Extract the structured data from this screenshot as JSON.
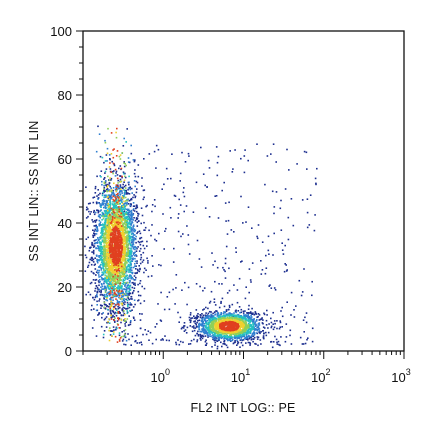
{
  "chart_data": {
    "type": "scatter",
    "subtype": "flow-cytometry density dot plot",
    "title": "",
    "xlabel": "FL2 INT LOG:: PE",
    "ylabel": "SS INT LIN:: SS INT LIN",
    "x_scale": "log",
    "xlim": [
      0.1,
      1000
    ],
    "ylim": [
      0,
      100
    ],
    "x_ticks": [
      {
        "value": 1,
        "base": "10",
        "exp": "0"
      },
      {
        "value": 10,
        "base": "10",
        "exp": "1"
      },
      {
        "value": 100,
        "base": "10",
        "exp": "2"
      },
      {
        "value": 1000,
        "base": "10",
        "exp": "3"
      }
    ],
    "y_ticks": [
      {
        "value": 0,
        "label": "0"
      },
      {
        "value": 20,
        "label": "20"
      },
      {
        "value": 40,
        "label": "40"
      },
      {
        "value": 60,
        "label": "60"
      },
      {
        "value": 80,
        "label": "80"
      },
      {
        "value": 100,
        "label": "100"
      }
    ],
    "grid": false,
    "legend": "none",
    "colormap": [
      "#1d2f8f",
      "#2f7fd0",
      "#25c0c0",
      "#8fd05a",
      "#f0d030",
      "#e04020"
    ],
    "populations": [
      {
        "center_x": 0.25,
        "center_y": 33,
        "x_spread_decades": 0.13,
        "y_spread": 9.5,
        "y_range": [
          3,
          72
        ],
        "density": "high"
      },
      {
        "center_x": 6.5,
        "center_y": 8,
        "x_spread_decades": 0.2,
        "y_spread": 2.3,
        "y_range": [
          1,
          18
        ],
        "density": "medium"
      }
    ],
    "sparse_events": {
      "x_range": [
        0.3,
        80
      ],
      "y_range": [
        2,
        65
      ]
    }
  }
}
